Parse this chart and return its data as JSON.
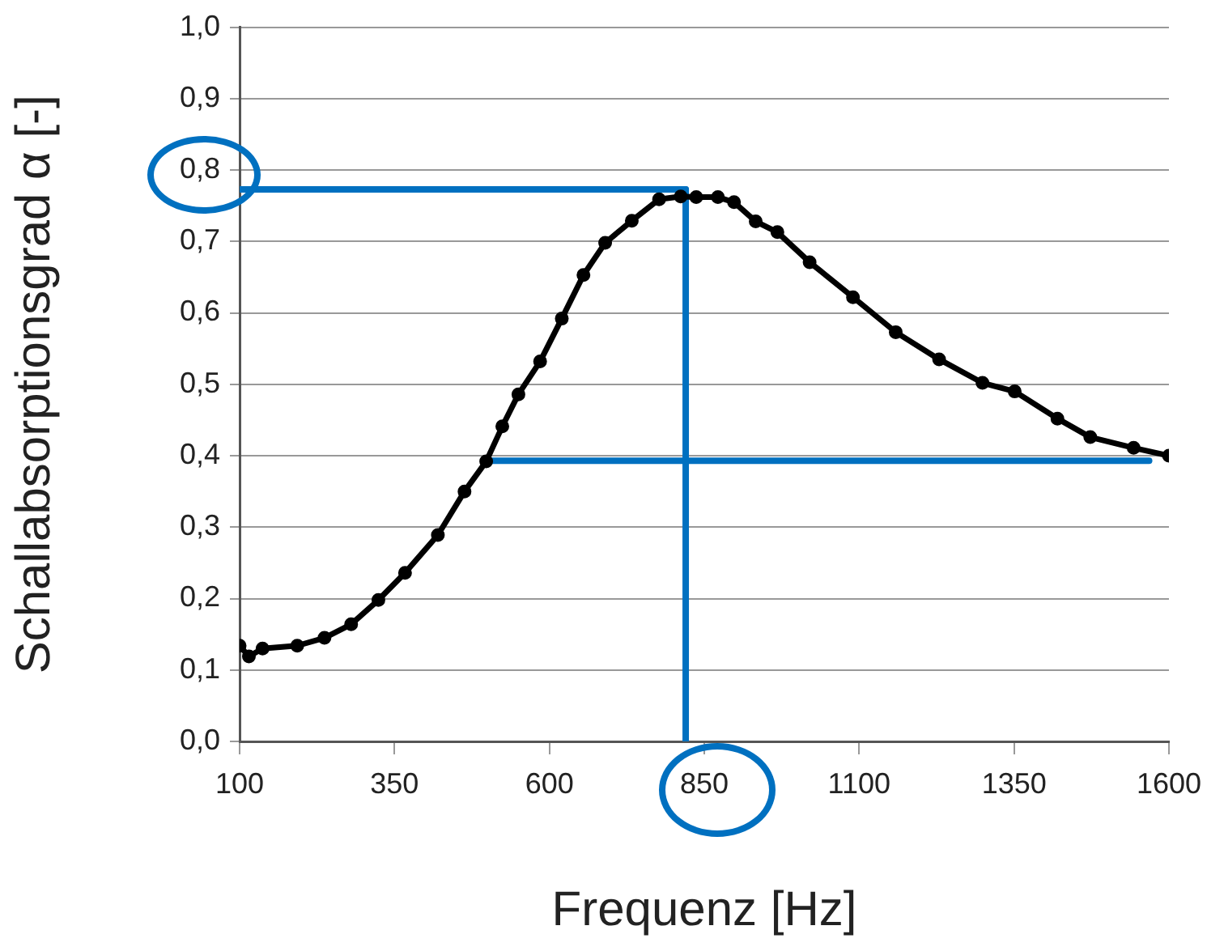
{
  "chart_data": {
    "type": "line",
    "xlabel": "Frequenz [Hz]",
    "ylabel": "Schallabsorptionsgrad α [-]",
    "xlim": [
      100,
      1600
    ],
    "xticks": [
      100,
      350,
      600,
      850,
      1100,
      1350,
      1600
    ],
    "ylim": [
      0,
      1
    ],
    "yticks": [
      {
        "value": 0,
        "label": "0,0"
      },
      {
        "value": 0.1,
        "label": "0,1"
      },
      {
        "value": 0.2,
        "label": "0,2"
      },
      {
        "value": 0.3,
        "label": "0,3"
      },
      {
        "value": 0.4,
        "label": "0,4"
      },
      {
        "value": 0.5,
        "label": "0,5"
      },
      {
        "value": 0.6,
        "label": "0,6"
      },
      {
        "value": 0.7,
        "label": "0,7"
      },
      {
        "value": 0.8,
        "label": "0,8"
      },
      {
        "value": 0.9,
        "label": "0,9"
      },
      {
        "value": 1,
        "label": "1,0"
      }
    ],
    "grid": "y",
    "legend": false,
    "marker": "circle",
    "line_style": "solid",
    "series": [
      {
        "color": "#000000",
        "x": [
          100,
          115,
          137,
          193,
          237,
          280,
          324,
          367,
          420,
          463,
          498,
          524,
          550,
          585,
          620,
          655,
          690,
          733,
          777,
          812,
          837,
          872,
          898,
          933,
          968,
          1020,
          1090,
          1159,
          1229,
          1299,
          1351,
          1420,
          1473,
          1543,
          1600
        ],
        "values": [
          0.134,
          0.119,
          0.13,
          0.134,
          0.145,
          0.164,
          0.198,
          0.236,
          0.289,
          0.35,
          0.392,
          0.441,
          0.486,
          0.532,
          0.592,
          0.653,
          0.698,
          0.729,
          0.759,
          0.763,
          0.762,
          0.762,
          0.755,
          0.728,
          0.713,
          0.671,
          0.622,
          0.573,
          0.535,
          0.502,
          0.49,
          0.452,
          0.426,
          0.411,
          0.4
        ]
      },
      {
        "color": "#0070c0",
        "marker": "none",
        "x": [
          100,
          820
        ],
        "values": [
          0.773,
          0.773
        ]
      },
      {
        "color": "#0070c0",
        "marker": "none",
        "x": [
          820,
          820
        ],
        "values": [
          0,
          0.773
        ]
      },
      {
        "color": "#0070c0",
        "marker": "none",
        "x": [
          498,
          1568
        ],
        "values": [
          0.393,
          0.393
        ]
      }
    ]
  }
}
